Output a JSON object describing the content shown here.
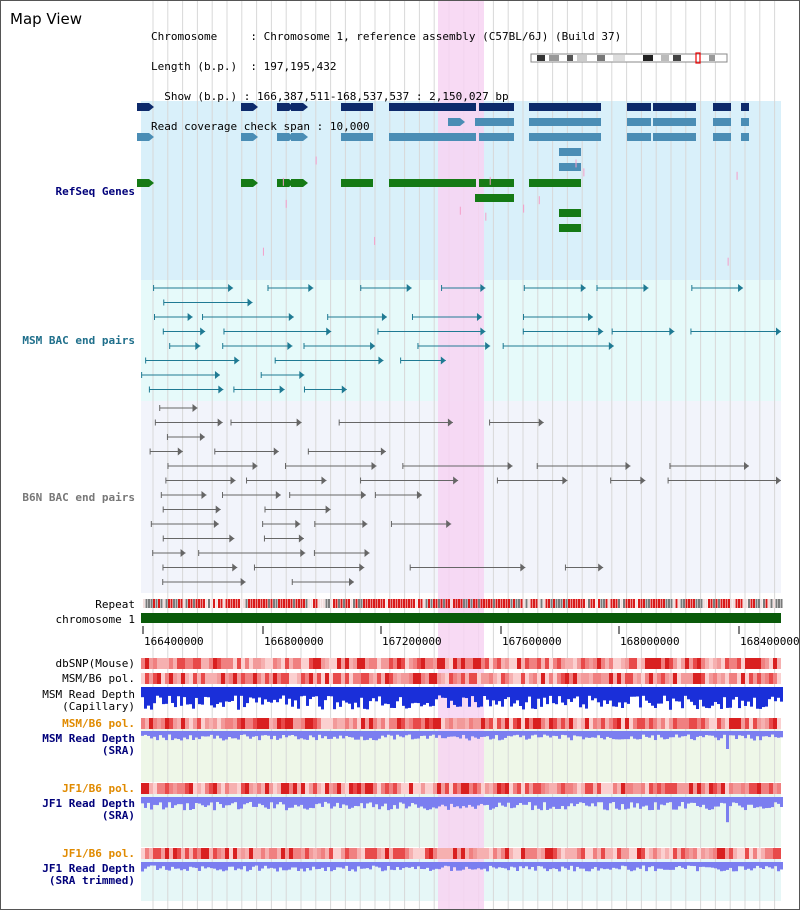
{
  "page": {
    "title": "Map View"
  },
  "info": {
    "chromosome_key": "Chromosome",
    "chromosome_val": "Chromosome 1, reference assembly (C57BL/6J) (Build 37)",
    "length_key": "Length (b.p.)",
    "length_val": "197,195,432",
    "show_key": "Show (b.p.)",
    "show_val": "166,387,511-168,537,537 : 2,150,027 bp",
    "span_key": "Read coverage check span",
    "span_val": "10,000"
  },
  "tracks": {
    "refseq": "RefSeq Genes",
    "msm_bac": "MSM BAC end pairs",
    "b6n_bac": "B6N BAC end pairs",
    "repeat": "Repeat",
    "chromosome": "chromosome 1",
    "dbsnp": "dbSNP(Mouse)",
    "msm_b6_pol_1": "MSM/B6 pol.",
    "msm_read_depth_cap_1": "MSM Read Depth",
    "msm_read_depth_cap_2": "(Capillary)",
    "msm_b6_pol_2": "MSM/B6 pol.",
    "msm_read_depth_sra_1": "MSM Read Depth",
    "msm_read_depth_sra_2": "(SRA)",
    "jf1_b6_pol_1": "JF1/B6 pol.",
    "jf1_read_depth_sra_1": "JF1 Read Depth",
    "jf1_read_depth_sra_2": "(SRA)",
    "jf1_b6_pol_2": "JF1/B6 pol.",
    "jf1_read_depth_trim_1": "JF1 Read Depth",
    "jf1_read_depth_trim_2": "(SRA trimmed)"
  },
  "axis": {
    "ticks": [
      "166400000",
      "166800000",
      "167200000",
      "167600000",
      "168000000",
      "168400000"
    ],
    "range": [
      166387511,
      168537537
    ]
  },
  "colors": {
    "refseq_bg": "#d9f0fa",
    "msm_bg": "#e6fafa",
    "b6n_bg": "#f2f4fb",
    "highlight": "#f7d4f2",
    "gene_dark": "#0d2a6b",
    "gene_mid": "#4a8db5",
    "gene_green": "#157a15",
    "msm_line": "#1f7a93",
    "b6n_line": "#666666",
    "chrom": "#0a5a0a",
    "depth_blue": "#1a2fd9",
    "depth_light": "#7b7ef0",
    "label_navy": "#00007a",
    "label_teal": "#1f6f8b",
    "label_orange": "#e08a00"
  }
}
